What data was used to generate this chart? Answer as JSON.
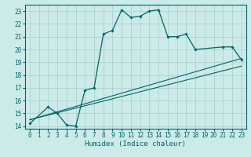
{
  "xlabel": "Humidex (Indice chaleur)",
  "ylabel": "",
  "xlim": [
    -0.5,
    23.5
  ],
  "ylim": [
    13.8,
    23.5
  ],
  "background_color": "#cceae8",
  "grid_color": "#aad4d0",
  "line_color": "#006666",
  "series_main": {
    "x": [
      0,
      2,
      3,
      4,
      5,
      6,
      7,
      8,
      9,
      10,
      11,
      12,
      13,
      14,
      15,
      16,
      17,
      18,
      21,
      22,
      23
    ],
    "y": [
      14.2,
      15.5,
      15.0,
      14.1,
      14.0,
      16.8,
      17.0,
      21.2,
      21.5,
      23.1,
      22.5,
      22.6,
      23.0,
      23.1,
      21.0,
      21.0,
      21.2,
      20.0,
      20.2,
      20.2,
      19.2
    ]
  },
  "series_linear1": {
    "x": [
      0,
      23
    ],
    "y": [
      14.5,
      19.3
    ]
  },
  "series_linear2": {
    "x": [
      0,
      23
    ],
    "y": [
      14.5,
      18.7
    ]
  },
  "xticks": [
    0,
    1,
    2,
    3,
    4,
    5,
    6,
    7,
    8,
    9,
    10,
    11,
    12,
    13,
    14,
    15,
    16,
    17,
    18,
    19,
    20,
    21,
    22,
    23
  ],
  "yticks": [
    14,
    15,
    16,
    17,
    18,
    19,
    20,
    21,
    22,
    23
  ],
  "tick_fontsize": 5.5,
  "label_fontsize": 6.5
}
